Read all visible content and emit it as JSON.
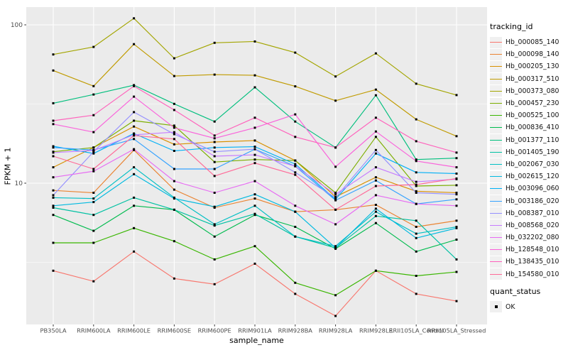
{
  "colors": {
    "panel_bg": "#EBEBEB",
    "grid": "#FFFFFF",
    "axis_text": "#4D4D4D",
    "axis_title": "#000000",
    "point": "#000000",
    "legend_key_bg": "#F0F0F0"
  },
  "legend": {
    "tracking_id_title": "tracking_id",
    "quant_status_title": "quant_status",
    "quant_status_items": [
      "OK"
    ]
  },
  "chart_data": {
    "type": "line",
    "title": "",
    "xlabel": "sample_name",
    "ylabel": "FPKM + 1",
    "y_scale": "log10",
    "y_ticks": [
      10,
      100
    ],
    "y_minor_ticks": [
      3.1623,
      31.623
    ],
    "ylim": [
      1.1,
      140
    ],
    "grid": "on",
    "legend_position": "right",
    "point_shape": "small-black-square",
    "categories": [
      "PB350LA",
      "RRIM600LA",
      "RRIM600LE",
      "RRIM600SE",
      "RRIM600PE",
      "RRIM901LA",
      "RRIM928BA",
      "RRIM928LA",
      "RRIM928LE",
      "RRII105LA_Control",
      "RRII105LA_Stressed"
    ],
    "series": [
      {
        "name": "Hb_000085_140",
        "color": "#F8766D",
        "values": [
          2.8,
          2.4,
          3.7,
          2.5,
          2.3,
          3.1,
          2.0,
          1.45,
          2.8,
          2.0,
          1.8
        ]
      },
      {
        "name": "Hb_000098_140",
        "color": "#EA8331",
        "values": [
          9.0,
          8.7,
          16.2,
          9.1,
          7.0,
          8.0,
          6.6,
          6.8,
          7.3,
          5.3,
          5.8
        ]
      },
      {
        "name": "Hb_000205_130",
        "color": "#D89000",
        "values": [
          12.6,
          16.8,
          22.8,
          17.6,
          18.2,
          18.6,
          13.9,
          8.2,
          10.9,
          8.9,
          8.7
        ]
      },
      {
        "name": "Hb_000317_510",
        "color": "#C09B00",
        "values": [
          51.5,
          41.0,
          75.5,
          47.5,
          48.5,
          48.0,
          40.9,
          33.2,
          39.0,
          25.3,
          19.8
        ]
      },
      {
        "name": "Hb_000373_080",
        "color": "#A3A500",
        "values": [
          65.0,
          72.5,
          110.0,
          61.5,
          77.0,
          78.5,
          66.8,
          47.2,
          66.0,
          42.5,
          36.0
        ]
      },
      {
        "name": "Hb_000457_230",
        "color": "#7CAE00",
        "values": [
          15.8,
          16.8,
          24.8,
          23.1,
          13.6,
          14.1,
          13.9,
          8.7,
          19.6,
          9.6,
          9.7
        ]
      },
      {
        "name": "Hb_000525_100",
        "color": "#39B600",
        "values": [
          4.2,
          4.2,
          5.2,
          4.3,
          3.3,
          4.0,
          2.35,
          1.96,
          2.8,
          2.6,
          2.75
        ]
      },
      {
        "name": "Hb_000836_410",
        "color": "#00BB4E",
        "values": [
          6.3,
          5.0,
          7.2,
          6.8,
          4.6,
          6.3,
          5.3,
          3.85,
          5.6,
          3.7,
          4.4
        ]
      },
      {
        "name": "Hb_001377_110",
        "color": "#00BF7D",
        "values": [
          32.0,
          36.3,
          41.6,
          31.7,
          24.5,
          40.3,
          24.5,
          16.8,
          35.9,
          14.1,
          14.4
        ]
      },
      {
        "name": "Hb_001405_190",
        "color": "#00C1A3",
        "values": [
          7.0,
          6.3,
          8.1,
          6.8,
          5.4,
          6.4,
          4.6,
          3.9,
          6.2,
          5.8,
          3.3
        ]
      },
      {
        "name": "Hb_002067_030",
        "color": "#00BFC4",
        "values": [
          8.1,
          8.0,
          12.6,
          8.1,
          5.5,
          7.2,
          4.6,
          4.0,
          6.6,
          4.8,
          5.3
        ]
      },
      {
        "name": "Hb_002615_120",
        "color": "#00BAE0",
        "values": [
          7.2,
          7.6,
          11.4,
          8.0,
          7.1,
          8.5,
          6.6,
          3.9,
          6.9,
          4.5,
          5.2
        ]
      },
      {
        "name": "Hb_003096_060",
        "color": "#00B0F6",
        "values": [
          17.1,
          15.4,
          20.6,
          16.0,
          16.8,
          17.0,
          13.2,
          7.9,
          15.4,
          11.7,
          11.5
        ]
      },
      {
        "name": "Hb_003186_020",
        "color": "#35A2FF",
        "values": [
          16.8,
          16.2,
          19.0,
          12.3,
          12.3,
          16.4,
          12.8,
          7.8,
          10.4,
          7.4,
          7.9
        ]
      },
      {
        "name": "Hb_008387_010",
        "color": "#9590FF",
        "values": [
          8.4,
          15.8,
          28.1,
          20.4,
          15.8,
          16.4,
          11.7,
          8.1,
          16.2,
          8.7,
          8.5
        ]
      },
      {
        "name": "Hb_008568_020",
        "color": "#C77CFF",
        "values": [
          15.6,
          16.1,
          20.2,
          21.0,
          14.8,
          15.1,
          12.8,
          8.5,
          12.6,
          10.2,
          10.6
        ]
      },
      {
        "name": "Hb_032202_080",
        "color": "#E76BF3",
        "values": [
          10.9,
          11.9,
          16.4,
          10.3,
          8.7,
          10.3,
          7.2,
          5.5,
          8.4,
          7.4,
          7.2
        ]
      },
      {
        "name": "Hb_128548_010",
        "color": "#FA62DB",
        "values": [
          23.6,
          21.0,
          35.2,
          22.4,
          19.2,
          22.4,
          27.2,
          12.7,
          21.2,
          13.8,
          12.6
        ]
      },
      {
        "name": "Hb_138435_010",
        "color": "#FF62BC",
        "values": [
          24.8,
          26.9,
          41.0,
          29.0,
          20.0,
          25.9,
          19.6,
          16.8,
          25.9,
          18.4,
          15.6
        ]
      },
      {
        "name": "Hb_154580_010",
        "color": "#FF6A98",
        "values": [
          14.8,
          12.3,
          20.0,
          19.0,
          11.1,
          13.4,
          11.3,
          6.8,
          9.6,
          9.8,
          10.7
        ]
      }
    ]
  }
}
